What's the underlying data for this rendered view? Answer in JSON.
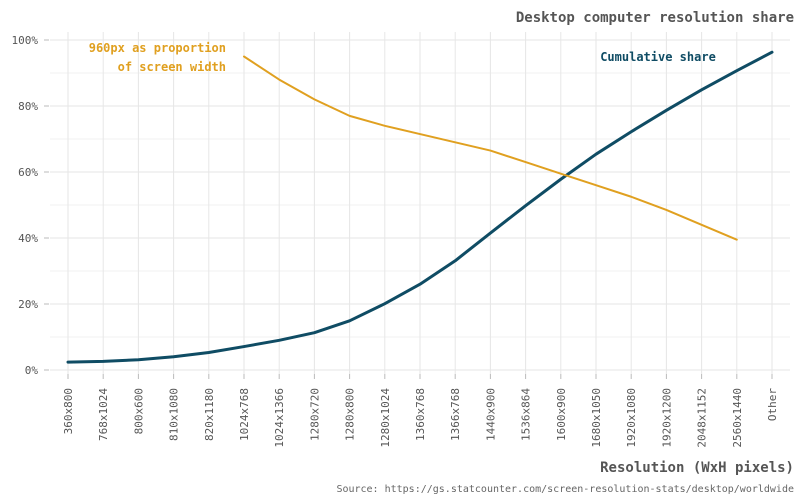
{
  "chart_data": {
    "type": "line",
    "title": "Desktop computer resolution share",
    "xlabel": "Resolution (WxH pixels)",
    "ylabel": "",
    "source": "Source: https://gs.statcounter.com/screen-resolution-stats/desktop/worldwide",
    "ylim": [
      0,
      100
    ],
    "yticks": [
      0,
      20,
      40,
      60,
      80,
      100
    ],
    "ytick_labels": [
      "0%",
      "20%",
      "40%",
      "60%",
      "80%",
      "100%"
    ],
    "grid": true,
    "categories": [
      "360x800",
      "768x1024",
      "800x600",
      "810x1080",
      "820x1180",
      "1024x768",
      "1024x1366",
      "1280x720",
      "1280x800",
      "1280x1024",
      "1360x768",
      "1366x768",
      "1440x900",
      "1536x864",
      "1600x900",
      "1680x1050",
      "1920x1080",
      "1920x1200",
      "2048x1152",
      "2560x1440",
      "Other"
    ],
    "series": [
      {
        "name": "Cumulative share",
        "color": "#0f4c64",
        "values": [
          2.4,
          2.6,
          3.1,
          4.0,
          5.3,
          7.1,
          9.0,
          11.3,
          14.9,
          20.1,
          26.0,
          33.1,
          41.5,
          49.8,
          57.8,
          65.4,
          72.2,
          78.7,
          84.9,
          90.7,
          96.3
        ]
      },
      {
        "name": "960px as proportion\nof screen width",
        "color": "#e0a020",
        "values": [
          null,
          null,
          null,
          null,
          null,
          95.0,
          88.0,
          82.0,
          77.0,
          74.0,
          71.5,
          69.0,
          66.5,
          63.0,
          59.5,
          56.0,
          52.5,
          48.5,
          44.0,
          39.5,
          null
        ]
      }
    ]
  }
}
